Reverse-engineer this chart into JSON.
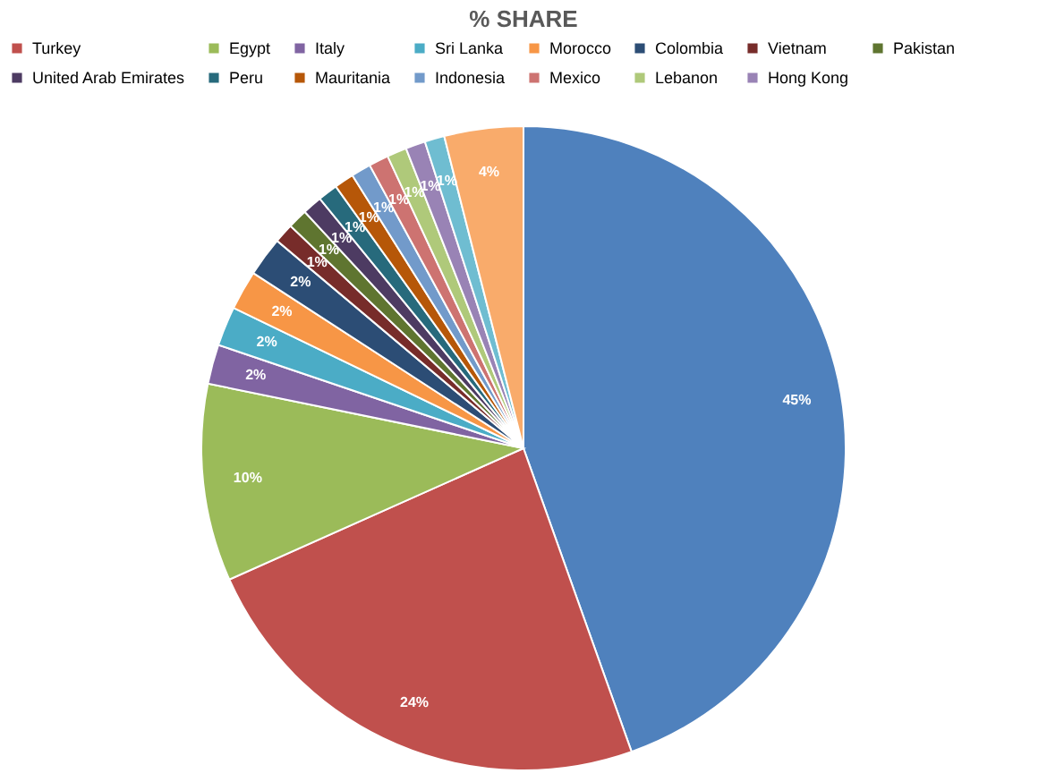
{
  "chart_data": {
    "type": "pie",
    "title": "% SHARE",
    "categories": [
      null,
      "Turkey",
      "Egypt",
      "Italy",
      "Sri Lanka",
      "Morocco",
      "Colombia",
      "Vietnam",
      "Pakistan",
      "United Arab Emirates",
      "Peru",
      "Mauritania",
      "Indonesia",
      "Mexico",
      "Lebanon",
      "Hong Kong",
      null,
      null
    ],
    "values": [
      45,
      24,
      10,
      2,
      2,
      2,
      2,
      1,
      1,
      1,
      1,
      1,
      1,
      1,
      1,
      1,
      1,
      4
    ],
    "colors": [
      "#4f81bd",
      "#c0504d",
      "#9bbb59",
      "#8064a2",
      "#4bacc6",
      "#f79646",
      "#2c4d75",
      "#772c2a",
      "#5f7530",
      "#4d3b62",
      "#276a7c",
      "#b65708",
      "#729aca",
      "#cd7371",
      "#afc97a",
      "#9983b5",
      "#6fbdd1",
      "#f9ab6b"
    ],
    "value_labels": [
      "45%",
      "24%",
      "10%",
      "2%",
      "2%",
      "2%",
      "2%",
      "1%",
      "1%",
      "1%",
      "1%",
      "1%",
      "1%",
      "1%",
      "1%",
      "1%",
      "1%",
      "4%"
    ],
    "legend": "top"
  }
}
